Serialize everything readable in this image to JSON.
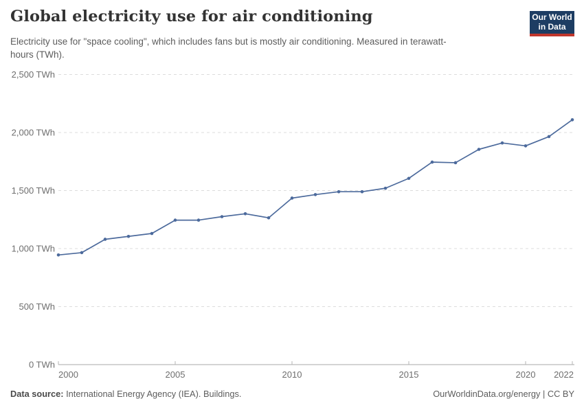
{
  "header": {
    "title": "Global electricity use for air conditioning",
    "subtitle": "Electricity use for \"space cooling\", which includes fans but is mostly air conditioning. Measured in terawatt-hours (TWh).",
    "logo": {
      "line1": "Our World",
      "line2": "in Data",
      "bg_color": "#1d3d63",
      "accent_color": "#c0362c"
    }
  },
  "chart_data": {
    "type": "line",
    "title": "Global electricity use for air conditioning",
    "xlabel": "",
    "ylabel": "",
    "unit": "TWh",
    "x": [
      2000,
      2001,
      2002,
      2003,
      2004,
      2005,
      2006,
      2007,
      2008,
      2009,
      2010,
      2011,
      2012,
      2013,
      2014,
      2015,
      2016,
      2017,
      2018,
      2019,
      2020,
      2021,
      2022
    ],
    "values": [
      945,
      965,
      1080,
      1105,
      1130,
      1245,
      1245,
      1275,
      1300,
      1265,
      1435,
      1465,
      1490,
      1490,
      1520,
      1605,
      1745,
      1740,
      1855,
      1910,
      1885,
      1965,
      2110
    ],
    "xlim": [
      2000,
      2022
    ],
    "ylim": [
      0,
      2500
    ],
    "x_ticks": [
      {
        "value": 2000,
        "label": "2000"
      },
      {
        "value": 2005,
        "label": "2005"
      },
      {
        "value": 2010,
        "label": "2010"
      },
      {
        "value": 2015,
        "label": "2015"
      },
      {
        "value": 2020,
        "label": "2020"
      },
      {
        "value": 2022,
        "label": "2022"
      }
    ],
    "y_ticks": [
      {
        "value": 0,
        "label": "0 TWh"
      },
      {
        "value": 500,
        "label": "500 TWh"
      },
      {
        "value": 1000,
        "label": "1,000 TWh"
      },
      {
        "value": 1500,
        "label": "1,500 TWh"
      },
      {
        "value": 2000,
        "label": "2,000 TWh"
      },
      {
        "value": 2500,
        "label": "2,500 TWh"
      }
    ],
    "grid": "horizontal-dashed",
    "legend": "none",
    "line_color": "#4c6a9c",
    "grid_color": "#dcdcdc",
    "axis_color": "#a8a8a8",
    "tick_color": "#b5b5b5",
    "tick_label_color": "#6e6e6e"
  },
  "footer": {
    "source_label": "Data source:",
    "source_text": " International Energy Agency (IEA). Buildings.",
    "credit": "OurWorldinData.org/energy | CC BY"
  }
}
